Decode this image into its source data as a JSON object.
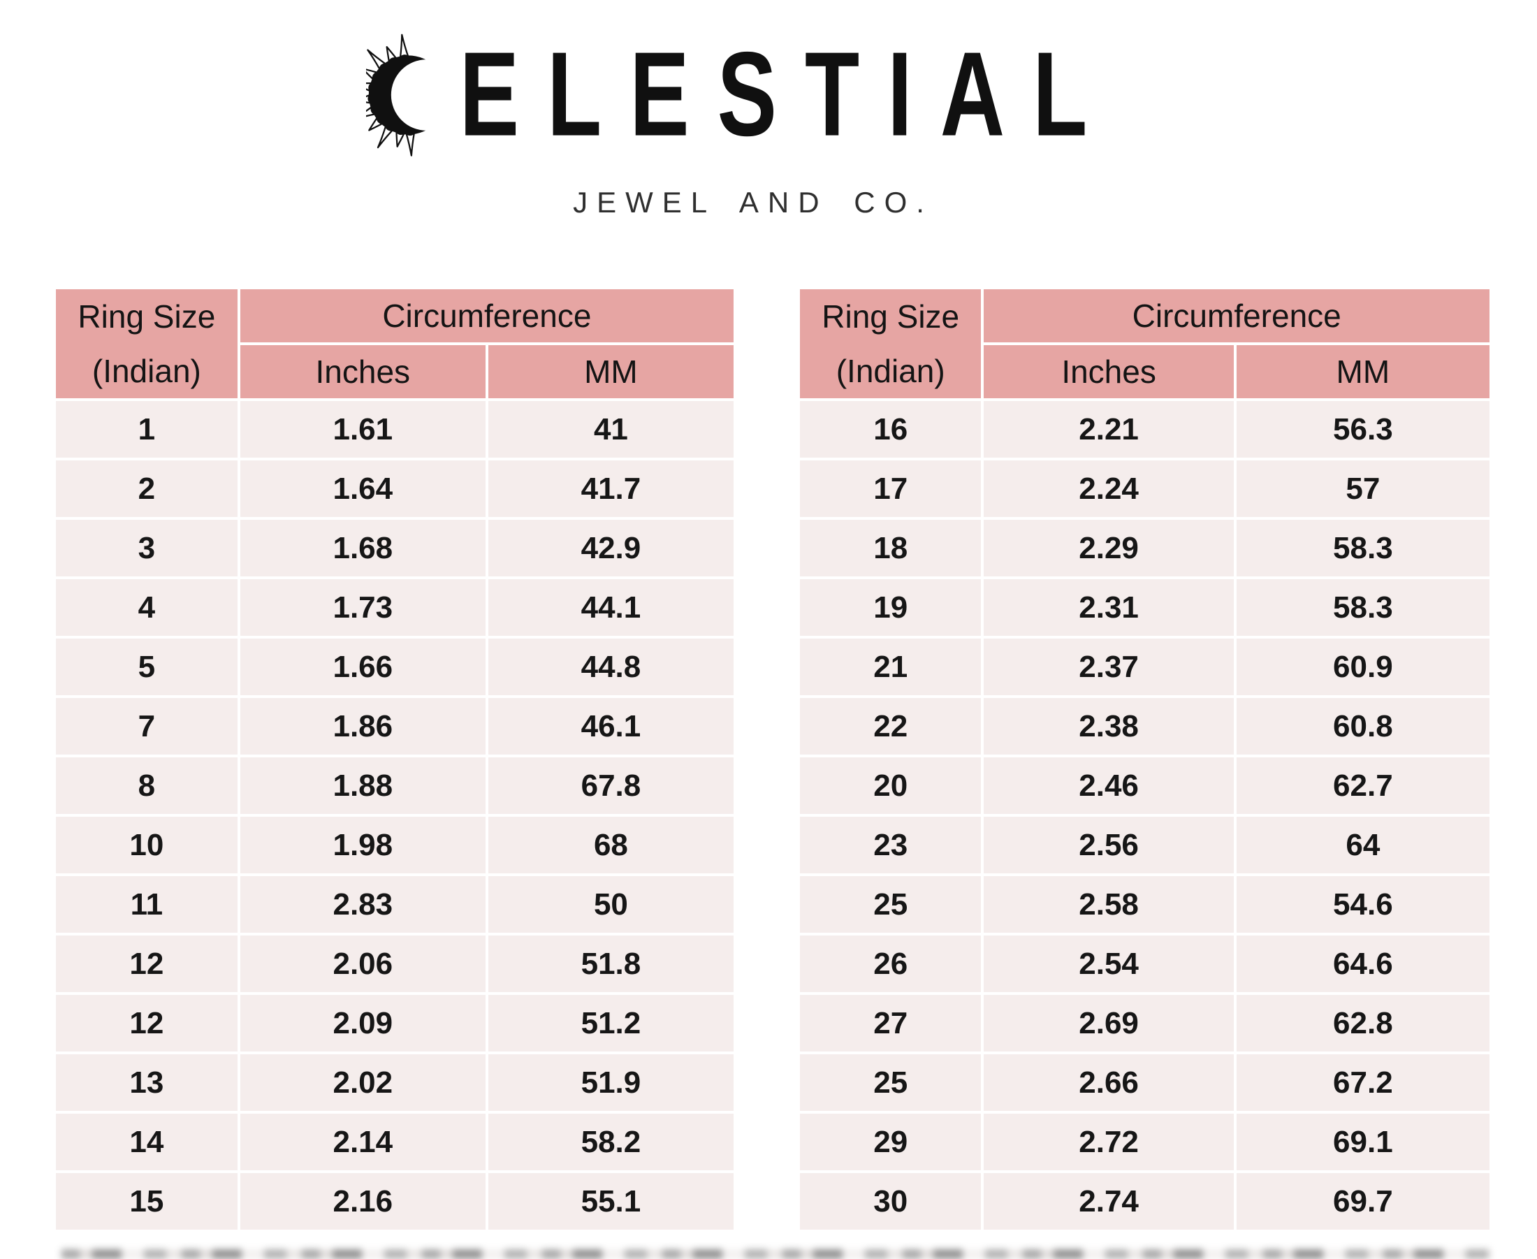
{
  "logo": {
    "icon": "sun-crescent",
    "brand_full": "CELESTIAL",
    "brand_text_after_icon": "ELESTIAL",
    "subtitle": "JEWEL AND CO."
  },
  "table_header": {
    "ring_size_line1": "Ring Size",
    "ring_size_line2": "(Indian)",
    "circumference": "Circumference",
    "inches": "Inches",
    "mm": "MM"
  },
  "chart_data": {
    "type": "table",
    "title": "Celestial Jewel and Co. ring size chart",
    "columns": [
      "Ring Size (Indian)",
      "Circumference Inches",
      "Circumference MM"
    ],
    "tables": [
      {
        "position": "left",
        "rows": [
          [
            "1",
            "1.61",
            "41"
          ],
          [
            "2",
            "1.64",
            "41.7"
          ],
          [
            "3",
            "1.68",
            "42.9"
          ],
          [
            "4",
            "1.73",
            "44.1"
          ],
          [
            "5",
            "1.66",
            "44.8"
          ],
          [
            "7",
            "1.86",
            "46.1"
          ],
          [
            "8",
            "1.88",
            "67.8"
          ],
          [
            "10",
            "1.98",
            "68"
          ],
          [
            "11",
            "2.83",
            "50"
          ],
          [
            "12",
            "2.06",
            "51.8"
          ],
          [
            "12",
            "2.09",
            "51.2"
          ],
          [
            "13",
            "2.02",
            "51.9"
          ],
          [
            "14",
            "2.14",
            "58.2"
          ],
          [
            "15",
            "2.16",
            "55.1"
          ]
        ]
      },
      {
        "position": "right",
        "rows": [
          [
            "16",
            "2.21",
            "56.3"
          ],
          [
            "17",
            "2.24",
            "57"
          ],
          [
            "18",
            "2.29",
            "58.3"
          ],
          [
            "19",
            "2.31",
            "58.3"
          ],
          [
            "21",
            "2.37",
            "60.9"
          ],
          [
            "22",
            "2.38",
            "60.8"
          ],
          [
            "20",
            "2.46",
            "62.7"
          ],
          [
            "23",
            "2.56",
            "64"
          ],
          [
            "25",
            "2.58",
            "54.6"
          ],
          [
            "26",
            "2.54",
            "64.6"
          ],
          [
            "27",
            "2.69",
            "62.8"
          ],
          [
            "25",
            "2.66",
            "67.2"
          ],
          [
            "29",
            "2.72",
            "69.1"
          ],
          [
            "30",
            "2.74",
            "69.7"
          ]
        ]
      }
    ]
  },
  "colors": {
    "header_bg": "#e6a5a3",
    "row_bg": "#f5edec",
    "divider": "#ffffff",
    "text": "#161616",
    "subtitle_text": "#2f2f2f",
    "logo_black": "#101010"
  }
}
